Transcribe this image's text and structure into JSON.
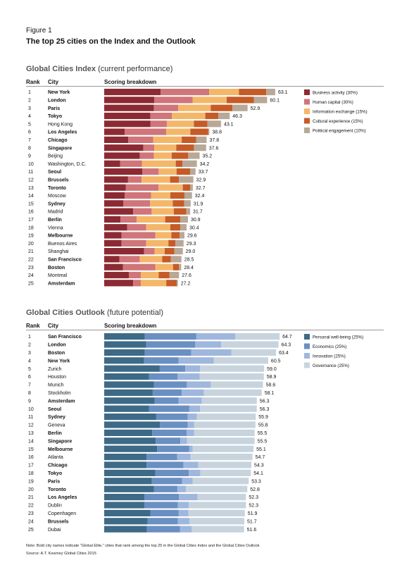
{
  "figure_label": "Figure 1",
  "figure_title": "The top 25 cities on the Index and the Outlook",
  "headers": {
    "rank": "Rank",
    "city": "City",
    "breakdown": "Scoring breakdown"
  },
  "note": "Note: Bold city names indicate “Global Elite,” cities that rank among the top 25 in the Global Cities Index and the Global Cities Outlook",
  "source": "Source: A.T. Kearney Global Cities 2015",
  "chart_data": [
    {
      "type": "bar",
      "stacked": true,
      "orientation": "horizontal",
      "title_bold": "Global Cities Index",
      "title_rest": " (current performance)",
      "categories": [
        "New York",
        "London",
        "Paris",
        "Tokyo",
        "Hong Kong",
        "Los Angeles",
        "Chicago",
        "Singapore",
        "Beijing",
        "Washington, D.C.",
        "Seoul",
        "Brussels",
        "Toronto",
        "Moscow",
        "Sydney",
        "Madrid",
        "Berlin",
        "Vienna",
        "Melbourne",
        "Buenos Aires",
        "Shanghai",
        "San Francisco",
        "Boston",
        "Montreal",
        "Amsterdam"
      ],
      "ranks": [
        "1",
        "2",
        "3",
        "4",
        "5",
        "6",
        "7",
        "8",
        "9",
        "10",
        "11",
        "12",
        "13",
        "14",
        "15",
        "16",
        "17",
        "18",
        "19",
        "20",
        "21",
        "22",
        "23",
        "24",
        "25"
      ],
      "bold": [
        true,
        true,
        true,
        true,
        false,
        true,
        true,
        true,
        false,
        false,
        true,
        true,
        true,
        false,
        true,
        false,
        true,
        false,
        true,
        false,
        false,
        true,
        true,
        false,
        true
      ],
      "totals": [
        "63.1",
        "60.1",
        "52.9",
        "46.3",
        "43.1",
        "38.8",
        "37.8",
        "37.6",
        "35.2",
        "34.2",
        "33.7",
        "32.9",
        "32.7",
        "32.4",
        "31.9",
        "31.7",
        "30.9",
        "30.4",
        "29.6",
        "29.3",
        "29.0",
        "28.5",
        "28.4",
        "27.6",
        "27.2"
      ],
      "series": [
        {
          "name": "Business activity (30%)",
          "color": "#8c2a33",
          "values": [
            20.8,
            18.5,
            18.3,
            17.0,
            17.1,
            7.6,
            8.9,
            14.4,
            13.1,
            5.9,
            14.1,
            8.8,
            8.0,
            7.6,
            7.1,
            10.7,
            6.0,
            8.5,
            6.4,
            6.4,
            14.7,
            5.6,
            6.9,
            9.1,
            10.7
          ]
        },
        {
          "name": "Human capital (30%)",
          "color": "#d07579",
          "values": [
            17.9,
            14.1,
            9.0,
            8.0,
            6.0,
            15.3,
            9.2,
            4.1,
            5.2,
            8.0,
            6.0,
            5.0,
            12.0,
            9.7,
            9.8,
            6.8,
            6.0,
            7.0,
            12.5,
            9.1,
            3.9,
            7.5,
            12.0,
            4.4,
            2.8
          ]
        },
        {
          "name": "Information exchange (15%)",
          "color": "#f4b76a",
          "values": [
            11.0,
            12.6,
            12.0,
            12.3,
            10.0,
            8.9,
            10.5,
            8.1,
            6.6,
            12.5,
            6.6,
            10.5,
            9.0,
            7.1,
            8.4,
            8.2,
            10.5,
            8.9,
            5.9,
            8.2,
            3.7,
            8.3,
            6.5,
            6.6,
            9.4
          ]
        },
        {
          "name": "Cultural experience (15%)",
          "color": "#c55b27",
          "values": [
            10.1,
            10.0,
            8.0,
            4.8,
            5.0,
            6.6,
            5.3,
            6.5,
            6.1,
            2.5,
            5.0,
            3.3,
            2.7,
            5.2,
            4.2,
            4.6,
            5.6,
            3.7,
            3.0,
            2.6,
            3.6,
            3.2,
            2.2,
            4.0,
            3.9
          ]
        },
        {
          "name": "Political engagement (10%)",
          "color": "#b8a898",
          "values": [
            3.3,
            4.9,
            5.6,
            4.2,
            5.0,
            0.4,
            3.9,
            4.5,
            4.2,
            5.3,
            2.0,
            5.3,
            1.0,
            2.8,
            2.4,
            1.4,
            2.8,
            2.3,
            1.8,
            3.0,
            3.1,
            3.9,
            0.8,
            3.5,
            0.4
          ]
        }
      ],
      "xlim": [
        0,
        65
      ]
    },
    {
      "type": "bar",
      "stacked": true,
      "orientation": "horizontal",
      "title_bold": "Global Cities Outlook",
      "title_rest": " (future potential)",
      "categories": [
        "San Francisco",
        "London",
        "Boston",
        "New York",
        "Zurich",
        "Houston",
        "Munich",
        "Stockholm",
        "Amsterdam",
        "Seoul",
        "Sydney",
        "Geneva",
        "Berlin",
        "Singapore",
        "Melbourne",
        "Atlanta",
        "Chicago",
        "Tokyo",
        "Paris",
        "Toronto",
        "Los Angeles",
        "Dublin",
        "Copenhagen",
        "Brussels",
        "Dubai"
      ],
      "ranks": [
        "1",
        "2",
        "3",
        "4",
        "5",
        "6",
        "7",
        "8",
        "9",
        "10",
        "11",
        "12",
        "13",
        "14",
        "15",
        "16",
        "17",
        "18",
        "19",
        "20",
        "21",
        "22",
        "23",
        "24",
        "25"
      ],
      "bold": [
        true,
        true,
        true,
        true,
        false,
        false,
        false,
        false,
        true,
        true,
        true,
        false,
        true,
        true,
        true,
        false,
        true,
        true,
        true,
        true,
        true,
        false,
        false,
        true,
        false
      ],
      "totals": [
        "64.7",
        "64.3",
        "63.4",
        "60.5",
        "59.0",
        "58.9",
        "58.6",
        "58.1",
        "56.3",
        "56.3",
        "55.9",
        "55.8",
        "55.5",
        "55.5",
        "55.1",
        "54.7",
        "54.3",
        "54.1",
        "53.3",
        "52.8",
        "52.3",
        "52.3",
        "51.9",
        "51.7",
        "51.6"
      ],
      "series": [
        {
          "name": "Personal well-being (25%)",
          "color": "#3d6a87",
          "values": [
            15.0,
            15.5,
            15.0,
            14.7,
            20.5,
            16.5,
            18.4,
            17.9,
            18.6,
            16.5,
            19.2,
            20.6,
            17.7,
            19.0,
            19.5,
            15.6,
            15.6,
            18.9,
            17.6,
            18.4,
            14.8,
            14.8,
            17.1,
            16.0,
            15.7
          ]
        },
        {
          "name": "Economics (25%)",
          "color": "#6a8fc2",
          "values": [
            19.0,
            18.1,
            17.1,
            12.7,
            9.4,
            10.6,
            12.1,
            10.7,
            8.8,
            14.9,
            11.6,
            10.2,
            12.7,
            9.1,
            11.9,
            11.3,
            13.6,
            12.3,
            11.1,
            8.6,
            12.8,
            12.4,
            10.4,
            11.2,
            12.3
          ]
        },
        {
          "name": "Innovation (25%)",
          "color": "#9fb7dd",
          "values": [
            14.4,
            9.6,
            14.8,
            13.0,
            5.5,
            8.1,
            8.9,
            8.2,
            8.6,
            4.0,
            3.4,
            2.4,
            2.8,
            2.5,
            1.2,
            5.0,
            5.5,
            4.3,
            3.9,
            3.2,
            6.8,
            4.0,
            3.6,
            4.3,
            4.3
          ]
        },
        {
          "name": "Governance (25%)",
          "color": "#c7d4de",
          "values": [
            16.3,
            21.1,
            16.5,
            20.1,
            23.6,
            23.7,
            19.2,
            21.3,
            20.3,
            20.9,
            21.7,
            22.6,
            22.3,
            24.9,
            22.5,
            22.8,
            19.6,
            18.6,
            20.7,
            22.6,
            17.9,
            21.1,
            20.8,
            20.2,
            19.3
          ]
        }
      ],
      "xlim": [
        0,
        65
      ]
    }
  ]
}
